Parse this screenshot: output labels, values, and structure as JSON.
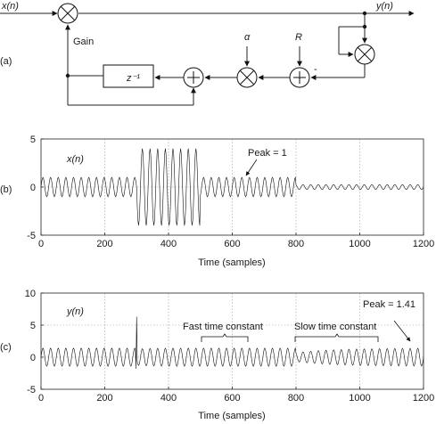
{
  "panel_a": {
    "label": "(a)",
    "input": "x(n)",
    "output": "y(n)",
    "gain": "Gain",
    "delay": "z⁻¹",
    "alpha": "α",
    "ref": "R",
    "minus": "-",
    "multiply_symbol": "×",
    "add_symbol": "+"
  },
  "panel_b": {
    "label": "(b)",
    "title": "x(n)",
    "annotation": "Peak = 1",
    "xlabel": "Time (samples)"
  },
  "panel_c": {
    "label": "(c)",
    "title": "y(n)",
    "annotation_peak": "Peak = 1.41",
    "annotation_fast": "Fast time constant",
    "annotation_slow": "Slow time constant",
    "xlabel": "Time (samples)"
  },
  "chart_data": [
    {
      "type": "line",
      "panel": "b",
      "title": "x(n)",
      "xlabel": "Time (samples)",
      "ylabel": "",
      "xlim": [
        0,
        1200
      ],
      "ylim": [
        -5,
        5
      ],
      "xticks": [
        "0",
        "200",
        "400",
        "600",
        "800",
        "1000",
        "1200"
      ],
      "yticks": [
        "-5",
        "0",
        "5"
      ],
      "grid": true,
      "series": [
        {
          "segments": [
            {
              "x_start": 0,
              "x_end": 300,
              "amplitude": 1
            },
            {
              "x_start": 300,
              "x_end": 500,
              "amplitude": 4
            },
            {
              "x_start": 500,
              "x_end": 800,
              "amplitude": 1
            },
            {
              "x_start": 800,
              "x_end": 1200,
              "amplitude": 0.25
            }
          ]
        }
      ]
    },
    {
      "type": "line",
      "panel": "c",
      "title": "y(n)",
      "xlabel": "Time (samples)",
      "ylabel": "",
      "xlim": [
        0,
        1200
      ],
      "ylim": [
        -5,
        10
      ],
      "xticks": [
        "0",
        "200",
        "400",
        "600",
        "800",
        "1000",
        "1200"
      ],
      "yticks": [
        "-5",
        "0",
        "5",
        "10"
      ],
      "grid": true,
      "series": [
        {
          "steady_amplitude": 1.41,
          "spike": {
            "x": 300,
            "peak": 6.3,
            "trough": -1.8
          },
          "dip_after_800": 0.5
        }
      ]
    }
  ]
}
